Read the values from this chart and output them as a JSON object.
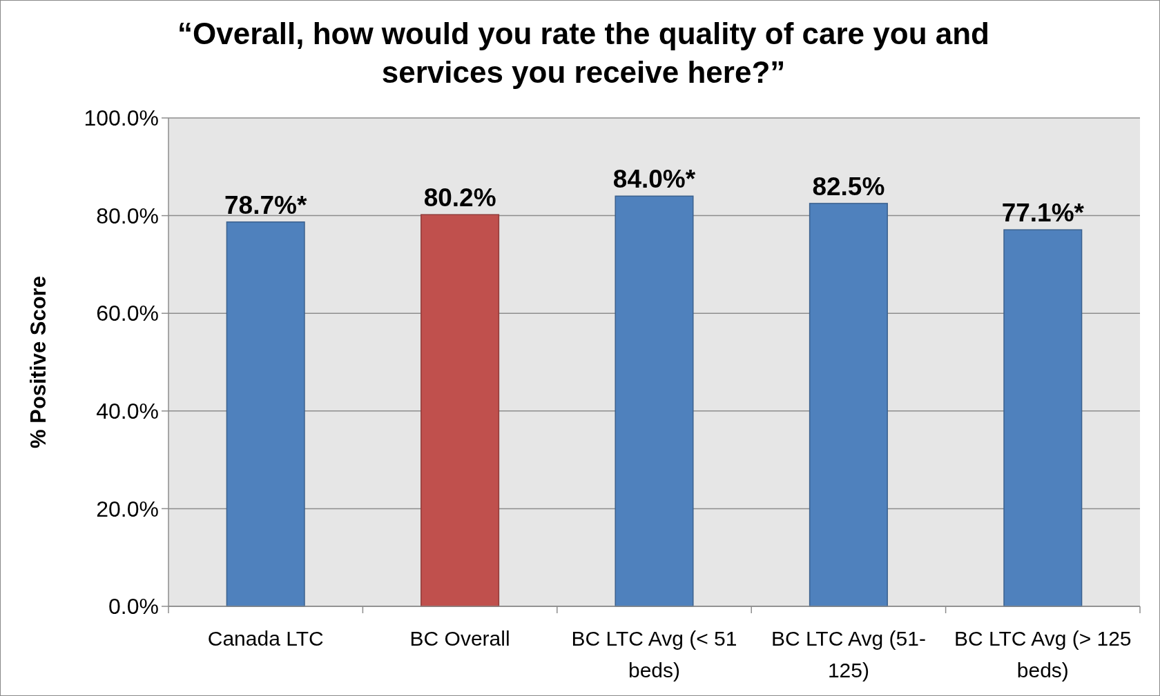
{
  "chart_data": {
    "type": "bar",
    "title": "“Overall, how would you rate the quality of care you and services you receive here?”",
    "ylabel": "% Positive Score",
    "categories": [
      "Canada LTC",
      "BC Overall",
      "BC LTC Avg (< 51 beds)",
      "BC LTC Avg (51-125)",
      "BC LTC Avg (> 125 beds)"
    ],
    "values": [
      78.7,
      80.2,
      84.0,
      82.5,
      77.1
    ],
    "value_labels": [
      "78.7%*",
      "80.2%",
      "84.0%*",
      "82.5%",
      "77.1%*"
    ],
    "colors": [
      "#4f81bd",
      "#c0504d",
      "#4f81bd",
      "#4f81bd",
      "#4f81bd"
    ],
    "ylim": [
      0,
      100
    ],
    "yticks": [
      {
        "value": 0,
        "label": "0.0%"
      },
      {
        "value": 20,
        "label": "20.0%"
      },
      {
        "value": 40,
        "label": "40.0%"
      },
      {
        "value": 60,
        "label": "60.0%"
      },
      {
        "value": 80,
        "label": "80.0%"
      },
      {
        "value": 100,
        "label": "100.0%"
      }
    ],
    "grid": "y"
  }
}
